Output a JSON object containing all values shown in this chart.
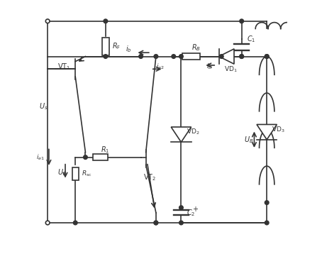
{
  "title": "",
  "bg_color": "#ffffff",
  "line_color": "#333333",
  "fig_width": 4.54,
  "fig_height": 3.58,
  "dpi": 100
}
